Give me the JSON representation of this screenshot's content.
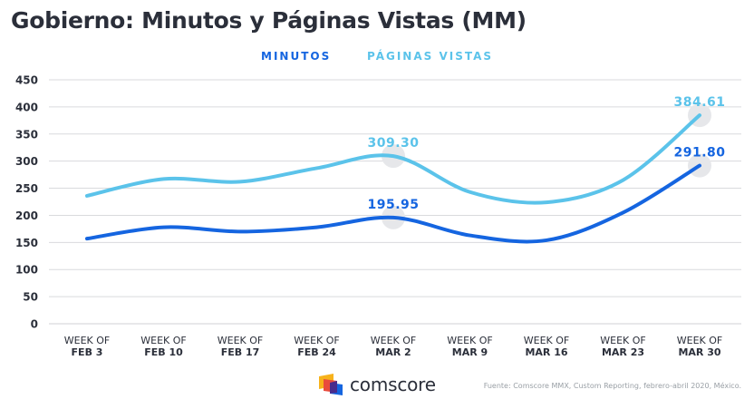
{
  "title": "Gobierno: Minutos y Páginas Vistas (MM)",
  "colors": {
    "minutos": "#1565e0",
    "paginas": "#5bc3ea",
    "text": "#2b2f3a",
    "grid": "#d9dadd"
  },
  "chart_data": {
    "type": "line",
    "title": "Gobierno: Minutos y Páginas Vistas (MM)",
    "categories": [
      [
        "WEEK OF",
        "FEB 3"
      ],
      [
        "WEEK OF",
        "FEB 10"
      ],
      [
        "WEEK OF",
        "FEB 17"
      ],
      [
        "WEEK OF",
        "FEB 24"
      ],
      [
        "WEEK OF",
        "MAR 2"
      ],
      [
        "WEEK OF",
        "MAR 9"
      ],
      [
        "WEEK OF",
        "MAR 16"
      ],
      [
        "WEEK OF",
        "MAR 23"
      ],
      [
        "WEEK OF",
        "MAR 30"
      ]
    ],
    "series": [
      {
        "name": "MINUTOS",
        "color": "#1565e0",
        "values": [
          157,
          178,
          170,
          178,
          195.95,
          163,
          154,
          205,
          291.8
        ]
      },
      {
        "name": "PÁGINAS VISTAS",
        "color": "#5bc3ea",
        "values": [
          236,
          267,
          262,
          287,
          309.3,
          243,
          224,
          265,
          384.61
        ]
      }
    ],
    "annotations": [
      {
        "series": 0,
        "index": 4,
        "label": "195.95"
      },
      {
        "series": 0,
        "index": 8,
        "label": "291.80"
      },
      {
        "series": 1,
        "index": 4,
        "label": "309.30"
      },
      {
        "series": 1,
        "index": 8,
        "label": "384.61"
      }
    ],
    "yticks": [
      0,
      50,
      100,
      150,
      200,
      250,
      300,
      350,
      400,
      450
    ],
    "ylim": [
      0,
      450
    ],
    "grid": "horizontal",
    "legend": "top-center"
  },
  "footer": {
    "logo": "comscore",
    "source": "Fuente: Comscore MMX, Custom Reporting, febrero-abril 2020, México."
  }
}
